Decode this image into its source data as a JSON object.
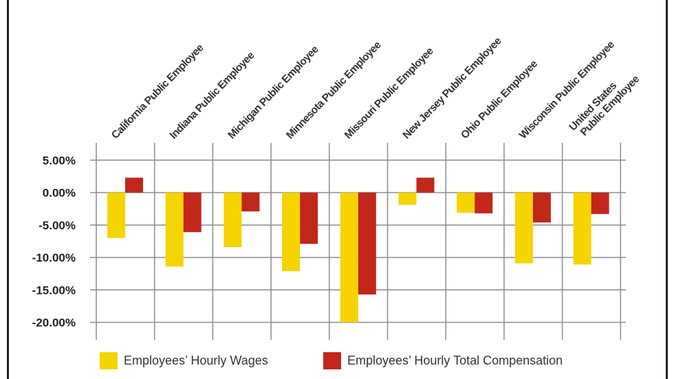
{
  "chart_data": {
    "type": "bar",
    "title": "",
    "xlabel": "",
    "ylabel": "",
    "categories": [
      [
        "California Public Employee"
      ],
      [
        "Indiana Public Employee"
      ],
      [
        "Michigan Public Employee"
      ],
      [
        "Minnesota Public Employee"
      ],
      [
        "Missouri Public Employee"
      ],
      [
        "New Jersey Public Employee"
      ],
      [
        "Ohio Public Employee"
      ],
      [
        "Wisconsin Public Employee"
      ],
      [
        "United States",
        "Public Employee"
      ]
    ],
    "series": [
      {
        "name": "Employees’ Hourly Wages",
        "color": "#f5d400",
        "values": [
          -7.0,
          -11.4,
          -8.4,
          -12.1,
          -20.0,
          -1.9,
          -3.1,
          -10.9,
          -11.1
        ]
      },
      {
        "name": "Employees’ Hourly Total Compensation",
        "color": "#c1271b",
        "values": [
          2.3,
          -6.1,
          -2.9,
          -7.9,
          -15.7,
          2.3,
          -3.2,
          -4.6,
          -3.3
        ]
      }
    ],
    "ylim": [
      -20,
      5
    ],
    "yticks": [
      5,
      0,
      -5,
      -10,
      -15,
      -20
    ],
    "ytick_labels": [
      "5.00%",
      "0.00%",
      "-5.00%",
      "-10.00%",
      "-15.00%",
      "-20.00%"
    ],
    "grid": true,
    "legend": "bottom"
  }
}
